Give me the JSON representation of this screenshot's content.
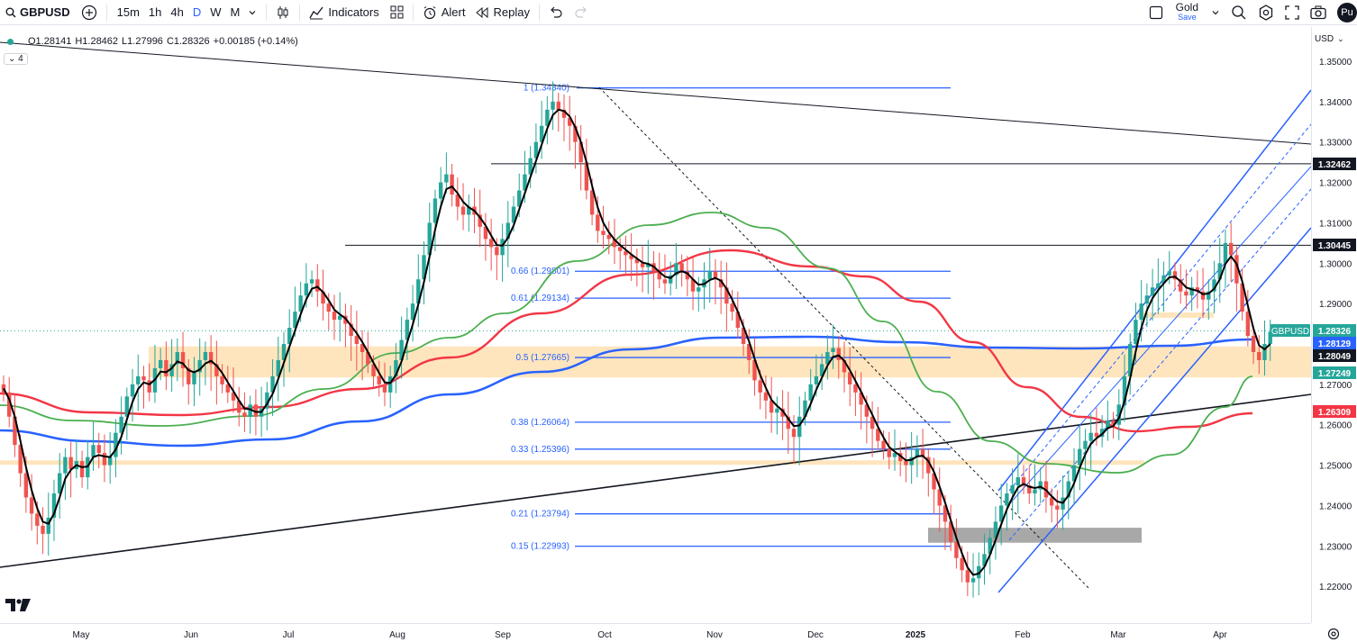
{
  "toolbar": {
    "symbol": "GBPUSD",
    "timeframes": [
      "15m",
      "1h",
      "4h",
      "D",
      "W",
      "M"
    ],
    "active_timeframe": "D",
    "indicators_label": "Indicators",
    "alert_label": "Alert",
    "replay_label": "Replay",
    "gold_label": "Gold",
    "save_label": "Save",
    "avatar_text": "Pu"
  },
  "legend": {
    "open": "O1.28141",
    "high": "H1.28462",
    "low": "L1.27996",
    "close": "C1.28326",
    "change": "+0.00185 (+0.14%)",
    "collapse_count": "4"
  },
  "currency": "USD",
  "price_ticks": [
    "1.35000",
    "1.34000",
    "1.33000",
    "1.32000",
    "1.31000",
    "1.30000",
    "1.29000",
    "1.28000",
    "1.27000",
    "1.26000",
    "1.25000",
    "1.24000",
    "1.23000",
    "1.22000"
  ],
  "time_ticks": [
    "May",
    "Jun",
    "Jul",
    "Aug",
    "Sep",
    "Oct",
    "Nov",
    "Dec",
    "2025",
    "Feb",
    "Mar",
    "Apr"
  ],
  "price_labels": [
    {
      "text": "1.32462",
      "style": "black"
    },
    {
      "text": "1.30445",
      "style": "black"
    },
    {
      "text": "GBPUSD",
      "style": "green"
    },
    {
      "text": "1.28326",
      "style": "green"
    },
    {
      "text": "1.28129",
      "style": "blue"
    },
    {
      "text": "1.28049",
      "style": "black"
    },
    {
      "text": "1.27249",
      "style": "green"
    },
    {
      "text": "1.26309",
      "style": "red"
    }
  ],
  "fib_levels": [
    {
      "label": "1 (1.34340)",
      "price": 1.3434
    },
    {
      "label": "0.66 (1.29801)",
      "price": 1.29801
    },
    {
      "label": "0.61 (1.29134)",
      "price": 1.29134
    },
    {
      "label": "0.5 (1.27665)",
      "price": 1.27665
    },
    {
      "label": "0.38 (1.26064)",
      "price": 1.26064
    },
    {
      "label": "0.33 (1.25396)",
      "price": 1.25396
    },
    {
      "label": "0.21 (1.23794)",
      "price": 1.23794
    },
    {
      "label": "0.15 (1.22993)",
      "price": 1.22993
    }
  ],
  "colors": {
    "up": "#26a69a",
    "down": "#ef5350",
    "fib": "#2962ff",
    "ma_black": "#000000",
    "ma_green": "#4caf50",
    "ma_red": "#f23645",
    "ma_blue": "#2962ff",
    "zone": "#ffe0b2",
    "grey_zone": "#9e9e9e"
  },
  "chart_data": {
    "type": "candlestick",
    "symbol": "GBPUSD",
    "interval": "D",
    "ylim": [
      1.213,
      1.352
    ],
    "fib_retracement": [
      1.3434,
      1.29801,
      1.29134,
      1.27665,
      1.26064,
      1.25396,
      1.23794,
      1.22993
    ],
    "horizontal_levels": [
      1.32462,
      1.30445
    ],
    "last_close": 1.28326,
    "moving_averages": [
      {
        "color": "blue",
        "last": 1.28129
      },
      {
        "color": "green",
        "last": 1.27249
      },
      {
        "color": "red",
        "last": 1.26309
      }
    ],
    "closes": [
      1.268,
      1.262,
      1.255,
      1.248,
      1.242,
      1.238,
      1.235,
      1.233,
      1.237,
      1.243,
      1.248,
      1.252,
      1.249,
      1.251,
      1.247,
      1.252,
      1.255,
      1.253,
      1.25,
      1.252,
      1.258,
      1.262,
      1.267,
      1.27,
      1.272,
      1.271,
      1.268,
      1.274,
      1.276,
      1.272,
      1.275,
      1.278,
      1.274,
      1.27,
      1.273,
      1.276,
      1.278,
      1.275,
      1.272,
      1.27,
      1.268,
      1.266,
      1.263,
      1.262,
      1.265,
      1.262,
      1.264,
      1.268,
      1.272,
      1.276,
      1.28,
      1.284,
      1.288,
      1.292,
      1.295,
      1.296,
      1.293,
      1.29,
      1.288,
      1.286,
      1.287,
      1.285,
      1.282,
      1.28,
      1.278,
      1.275,
      1.272,
      1.27,
      1.268,
      1.272,
      1.276,
      1.281,
      1.286,
      1.29,
      1.296,
      1.302,
      1.31,
      1.316,
      1.32,
      1.322,
      1.317,
      1.314,
      1.312,
      1.314,
      1.312,
      1.309,
      1.306,
      1.304,
      1.302,
      1.306,
      1.31,
      1.314,
      1.318,
      1.322,
      1.326,
      1.33,
      1.334,
      1.338,
      1.34,
      1.338,
      1.336,
      1.334,
      1.33,
      1.325,
      1.318,
      1.312,
      1.308,
      1.307,
      1.306,
      1.304,
      1.303,
      1.302,
      1.301,
      1.3,
      1.299,
      1.3,
      1.298,
      1.296,
      1.295,
      1.297,
      1.3,
      1.298,
      1.296,
      1.293,
      1.294,
      1.296,
      1.298,
      1.296,
      1.294,
      1.29,
      1.288,
      1.284,
      1.28,
      1.276,
      1.271,
      1.268,
      1.266,
      1.263,
      1.264,
      1.262,
      1.259,
      1.257,
      1.262,
      1.266,
      1.27,
      1.272,
      1.275,
      1.278,
      1.279,
      1.276,
      1.273,
      1.27,
      1.268,
      1.265,
      1.262,
      1.259,
      1.256,
      1.254,
      1.252,
      1.253,
      1.251,
      1.25,
      1.252,
      1.254,
      1.252,
      1.248,
      1.244,
      1.24,
      1.236,
      1.231,
      1.227,
      1.224,
      1.221,
      1.222,
      1.225,
      1.228,
      1.232,
      1.236,
      1.24,
      1.243,
      1.245,
      1.247,
      1.245,
      1.243,
      1.244,
      1.246,
      1.242,
      1.24,
      1.239,
      1.242,
      1.246,
      1.25,
      1.254,
      1.256,
      1.258,
      1.257,
      1.259,
      1.261,
      1.26,
      1.265,
      1.272,
      1.28,
      1.286,
      1.29,
      1.292,
      1.294,
      1.295,
      1.297,
      1.298,
      1.296,
      1.293,
      1.292,
      1.294,
      1.293,
      1.291,
      1.293,
      1.296,
      1.3,
      1.305,
      1.302,
      1.295,
      1.288,
      1.282,
      1.278,
      1.276,
      1.28,
      1.283
    ]
  }
}
